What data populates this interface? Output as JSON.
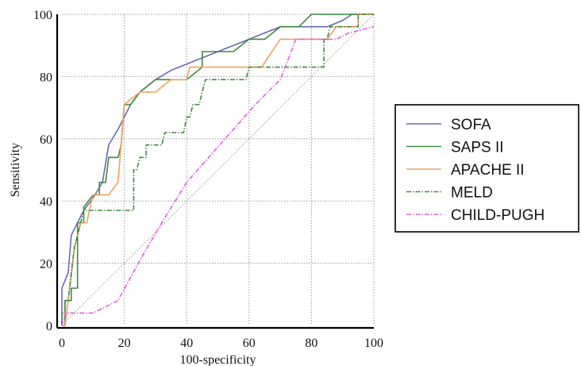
{
  "chart_data": {
    "type": "line",
    "title": "",
    "xlabel": "100-specificity",
    "ylabel": "Sensitivity",
    "xlim": [
      0,
      100
    ],
    "ylim": [
      0,
      100
    ],
    "xticks": [
      "0",
      "20",
      "40",
      "60",
      "80",
      "100"
    ],
    "yticks": [
      "0",
      "20",
      "40",
      "60",
      "80",
      "100"
    ],
    "grid": true,
    "legend_position": "right",
    "reference_line": [
      [
        0,
        0
      ],
      [
        100,
        100
      ]
    ],
    "series": [
      {
        "name": "SOFA",
        "color": "#6a6ab4",
        "dash": "solid",
        "points": [
          [
            0,
            0
          ],
          [
            0,
            12
          ],
          [
            2,
            17
          ],
          [
            3,
            29
          ],
          [
            5,
            33
          ],
          [
            7,
            37
          ],
          [
            10,
            41
          ],
          [
            13,
            46
          ],
          [
            15,
            58
          ],
          [
            18,
            63
          ],
          [
            20,
            67
          ],
          [
            22,
            71
          ],
          [
            25,
            75
          ],
          [
            30,
            79
          ],
          [
            35,
            82
          ],
          [
            40,
            84
          ],
          [
            45,
            86
          ],
          [
            50,
            88
          ],
          [
            55,
            90
          ],
          [
            60,
            92
          ],
          [
            65,
            94
          ],
          [
            70,
            96
          ],
          [
            75,
            96
          ],
          [
            80,
            96
          ],
          [
            85,
            96
          ],
          [
            90,
            98
          ],
          [
            93,
            100
          ],
          [
            100,
            100
          ]
        ]
      },
      {
        "name": "SAPS II",
        "color": "#3f8a3f",
        "dash": "solid",
        "points": [
          [
            0,
            0
          ],
          [
            1,
            0
          ],
          [
            1,
            4
          ],
          [
            1,
            8
          ],
          [
            3,
            8
          ],
          [
            3,
            12
          ],
          [
            5,
            12
          ],
          [
            5,
            33
          ],
          [
            7,
            33
          ],
          [
            7,
            38
          ],
          [
            10,
            42
          ],
          [
            12,
            42
          ],
          [
            12,
            46
          ],
          [
            14,
            46
          ],
          [
            15,
            54
          ],
          [
            18,
            54
          ],
          [
            19,
            58
          ],
          [
            20,
            71
          ],
          [
            22,
            71
          ],
          [
            25,
            75
          ],
          [
            30,
            79
          ],
          [
            35,
            79
          ],
          [
            40,
            79
          ],
          [
            45,
            83
          ],
          [
            45,
            88
          ],
          [
            55,
            88
          ],
          [
            60,
            92
          ],
          [
            65,
            92
          ],
          [
            70,
            96
          ],
          [
            76,
            96
          ],
          [
            80,
            100
          ],
          [
            100,
            100
          ]
        ]
      },
      {
        "name": "APACHE II",
        "color": "#f0a060",
        "dash": "solid",
        "points": [
          [
            0,
            0
          ],
          [
            1,
            0
          ],
          [
            2,
            8
          ],
          [
            3,
            16
          ],
          [
            4,
            25
          ],
          [
            5,
            29
          ],
          [
            6,
            33
          ],
          [
            8,
            33
          ],
          [
            9,
            38
          ],
          [
            10,
            42
          ],
          [
            15,
            42
          ],
          [
            18,
            46
          ],
          [
            20,
            71
          ],
          [
            25,
            75
          ],
          [
            30,
            75
          ],
          [
            35,
            79
          ],
          [
            40,
            79
          ],
          [
            41,
            83
          ],
          [
            50,
            83
          ],
          [
            60,
            83
          ],
          [
            64,
            83
          ],
          [
            70,
            92
          ],
          [
            80,
            92
          ],
          [
            85,
            92
          ],
          [
            88,
            96
          ],
          [
            95,
            96
          ],
          [
            95,
            100
          ],
          [
            100,
            100
          ]
        ]
      },
      {
        "name": "MELD",
        "color": "#3f8a3f",
        "dash": "dashdot",
        "points": [
          [
            0,
            0
          ],
          [
            0,
            4
          ],
          [
            1,
            4
          ],
          [
            1,
            8
          ],
          [
            2,
            8
          ],
          [
            3,
            17
          ],
          [
            4,
            25
          ],
          [
            5,
            29
          ],
          [
            6,
            33
          ],
          [
            7,
            37
          ],
          [
            23,
            37
          ],
          [
            23,
            50
          ],
          [
            24,
            50
          ],
          [
            25,
            54
          ],
          [
            27,
            54
          ],
          [
            27,
            58
          ],
          [
            32,
            58
          ],
          [
            33,
            62
          ],
          [
            39,
            62
          ],
          [
            40,
            67
          ],
          [
            41,
            67
          ],
          [
            42,
            71
          ],
          [
            44,
            71
          ],
          [
            45,
            75
          ],
          [
            46,
            79
          ],
          [
            59,
            79
          ],
          [
            60,
            83
          ],
          [
            84,
            83
          ],
          [
            84,
            92
          ],
          [
            85,
            92
          ],
          [
            86,
            96
          ],
          [
            95,
            96
          ],
          [
            95,
            100
          ],
          [
            100,
            100
          ]
        ]
      },
      {
        "name": "CHILD-PUGH",
        "color": "#e060e0",
        "dash": "dashdot",
        "points": [
          [
            0,
            0
          ],
          [
            1,
            4
          ],
          [
            10,
            4
          ],
          [
            18,
            8
          ],
          [
            25,
            21
          ],
          [
            32,
            33
          ],
          [
            40,
            46
          ],
          [
            47,
            54
          ],
          [
            55,
            63
          ],
          [
            62,
            71
          ],
          [
            70,
            79
          ],
          [
            75,
            92
          ],
          [
            80,
            92
          ],
          [
            88,
            92
          ],
          [
            92,
            94
          ],
          [
            100,
            96
          ]
        ]
      }
    ]
  }
}
